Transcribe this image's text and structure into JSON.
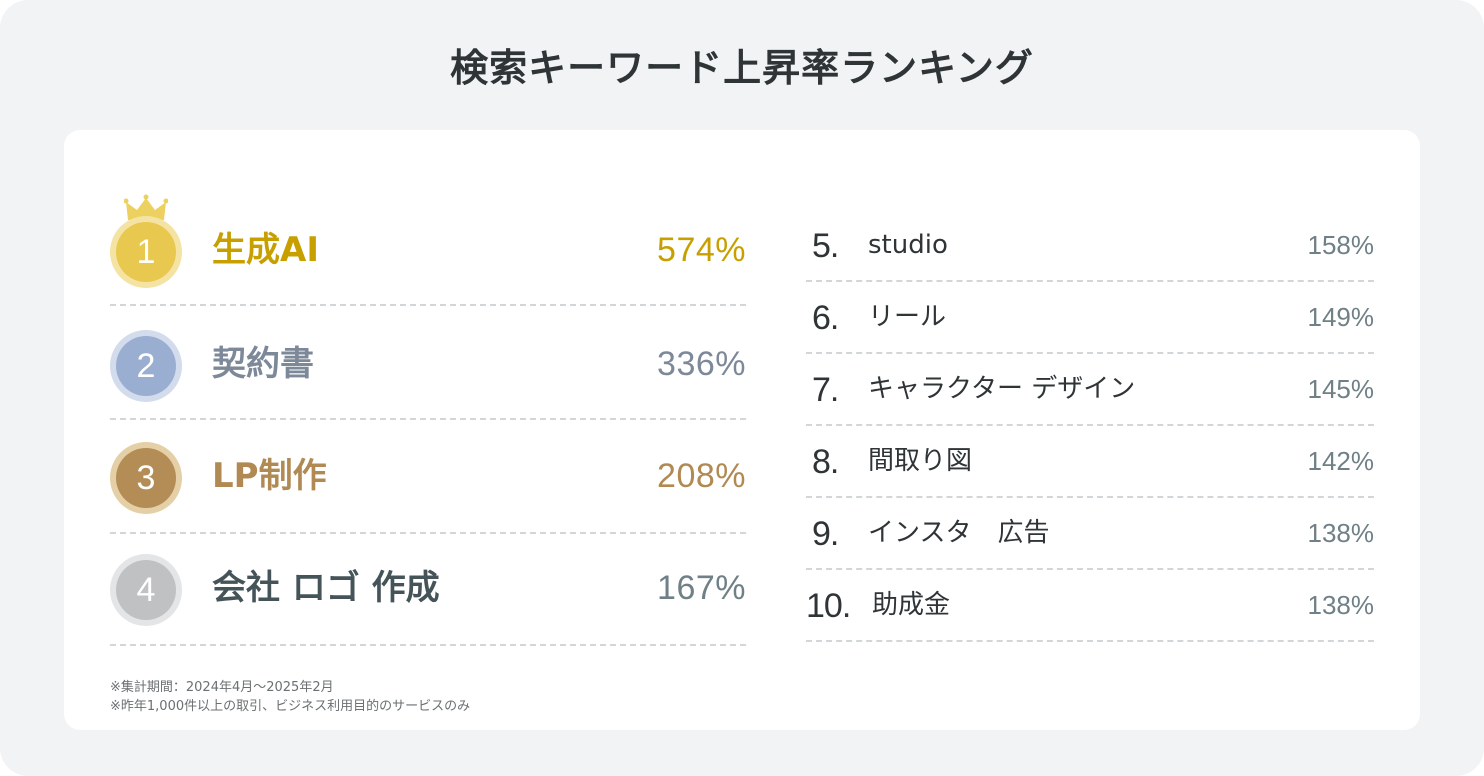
{
  "title": "検索キーワード上昇率ランキング",
  "top_ranking": [
    {
      "rank": "1",
      "name": "生成AI",
      "percent": "574%",
      "medal": "gold",
      "color": "#c7a000",
      "medal_color": "#e8c84e",
      "medal_ring": "#f4e3a2"
    },
    {
      "rank": "2",
      "name": "契約書",
      "percent": "336%",
      "medal": "silver-blue",
      "color": "#7d8898",
      "medal_color": "#9aaed2",
      "medal_ring": "#d3dcec"
    },
    {
      "rank": "3",
      "name": "LP制作",
      "percent": "208%",
      "medal": "bronze",
      "color": "#b08a52",
      "medal_color": "#b38d55",
      "medal_ring": "#e4cfa6"
    },
    {
      "rank": "4",
      "name": "会社 ロゴ 作成",
      "percent": "167%",
      "medal": "gray",
      "color": "#445459",
      "percent_color": "#6f8086",
      "medal_color": "#bfc1c2",
      "medal_ring": "#e4e5e6"
    }
  ],
  "other_ranking": [
    {
      "rank": "5.",
      "name": "studio",
      "percent": "158%"
    },
    {
      "rank": "6.",
      "name": "リール",
      "percent": "149%"
    },
    {
      "rank": "7.",
      "name": "キャラクター デザイン",
      "percent": "145%"
    },
    {
      "rank": "8.",
      "name": "間取り図",
      "percent": "142%"
    },
    {
      "rank": "9.",
      "name": "インスタ　広告",
      "percent": "138%"
    },
    {
      "rank": "10.",
      "name": "助成金",
      "percent": "138%"
    }
  ],
  "notes": [
    "※集計期間：2024年4月〜2025年2月",
    "※昨年1,000件以上の取引、ビジネス利用目的のサービスのみ"
  ],
  "icons": {
    "crown": "crown-icon"
  }
}
